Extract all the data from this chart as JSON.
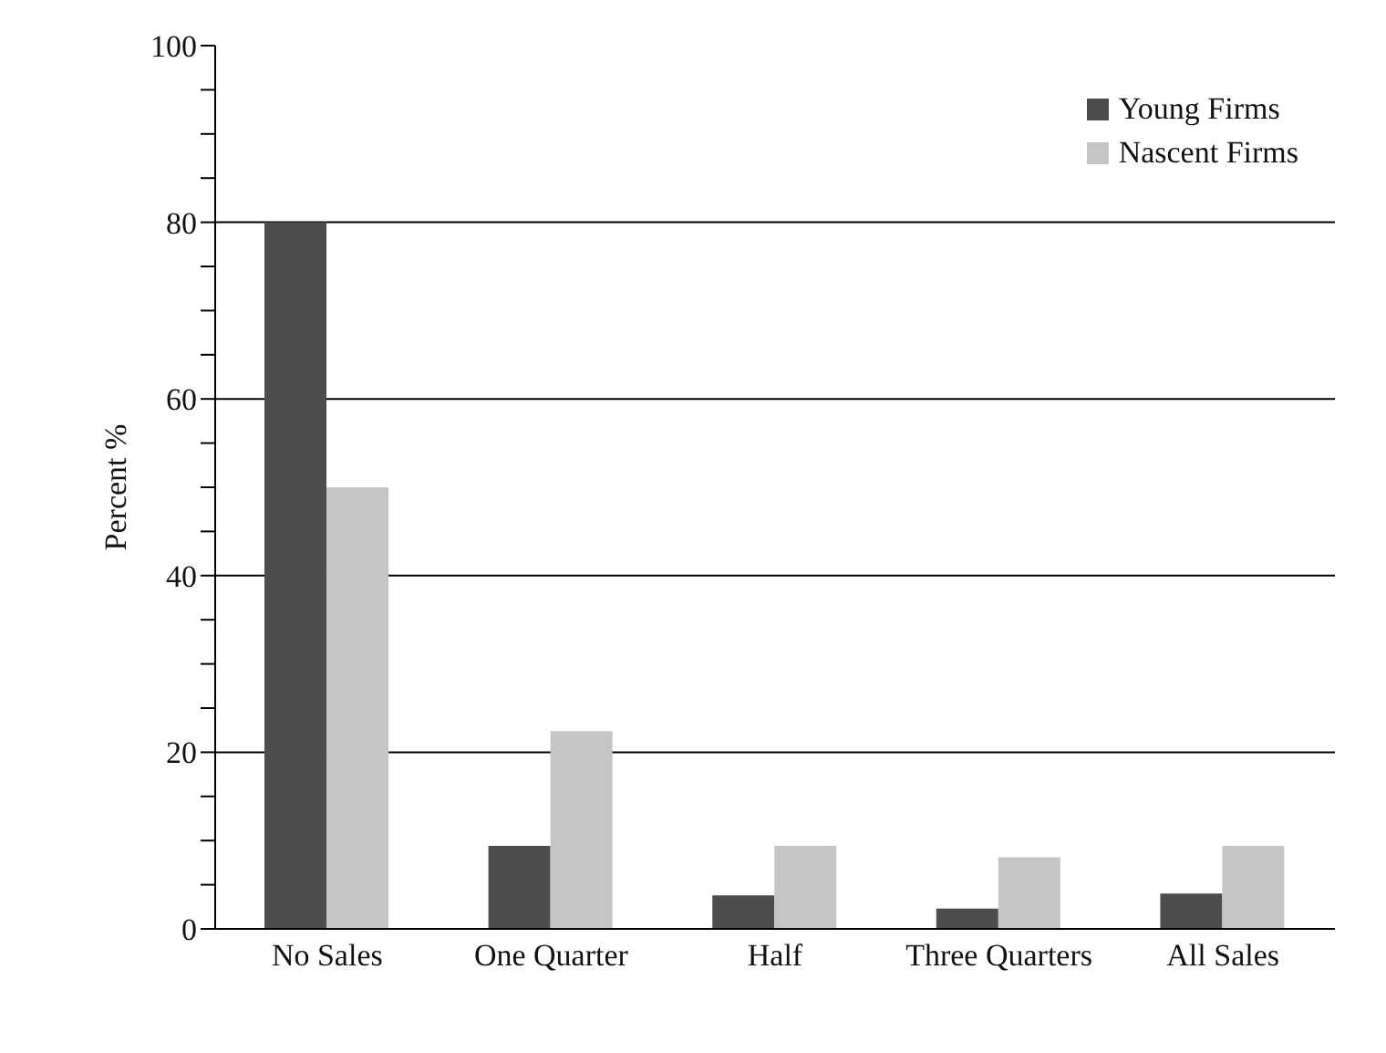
{
  "chart_data": {
    "type": "bar",
    "ylabel": "Percent %",
    "categories": [
      "No Sales",
      "One Quarter",
      "Half",
      "Three Quarters",
      "All Sales"
    ],
    "series": [
      {
        "name": "Young Firms",
        "color": "#4d4d4d",
        "values": [
          80,
          9.4,
          3.8,
          2.3,
          4.0
        ]
      },
      {
        "name": "Nascent Firms",
        "color": "#c4c5c5",
        "values": [
          50,
          22.4,
          9.4,
          8.1,
          9.4
        ]
      }
    ],
    "ylim": [
      0,
      100
    ],
    "yticks": [
      0,
      {
        "value": 5,
        "label": null
      },
      {
        "value": 10,
        "label": null
      },
      {
        "value": 15,
        "label": null
      },
      20,
      {
        "value": 25,
        "label": null
      },
      {
        "value": 30,
        "label": null
      },
      {
        "value": 35,
        "label": null
      },
      40,
      {
        "value": 45,
        "label": null
      },
      {
        "value": 50,
        "label": null
      },
      {
        "value": 55,
        "label": null
      },
      60,
      {
        "value": 65,
        "label": null
      },
      {
        "value": 70,
        "label": null
      },
      {
        "value": 75,
        "label": null
      },
      80,
      {
        "value": 85,
        "label": null
      },
      {
        "value": 90,
        "label": null
      },
      {
        "value": 95,
        "label": null
      },
      100
    ],
    "grid": "y",
    "legend": "top right"
  }
}
